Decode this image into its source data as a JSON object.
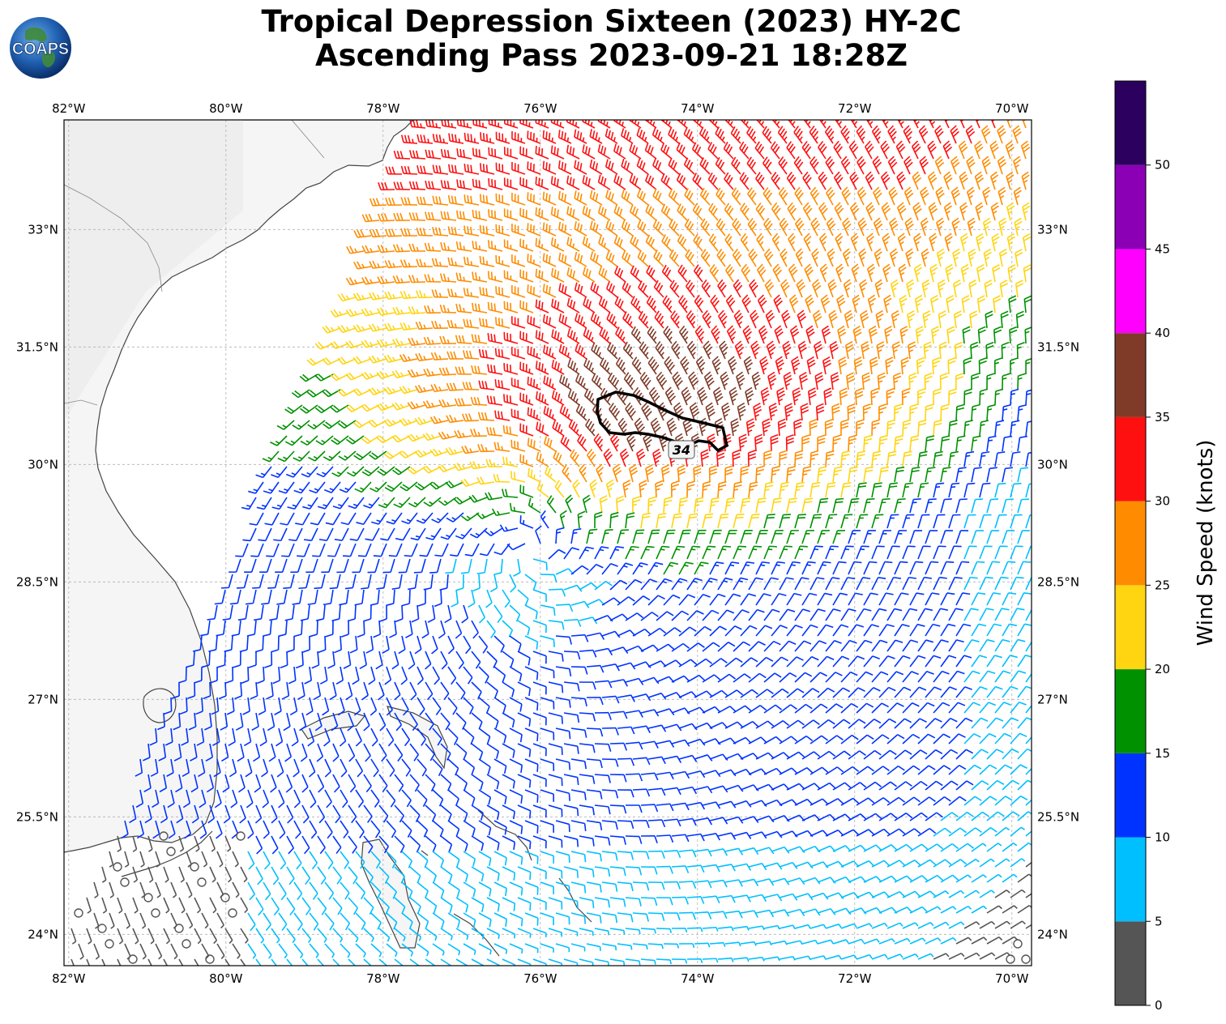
{
  "title": {
    "line1": "Tropical Depression Sixteen (2023) HY-2C",
    "line2": "Ascending Pass 2023-09-21 18:28Z"
  },
  "logo": {
    "text": "COAPS",
    "icon": "globe-icon"
  },
  "map": {
    "lon_labels": [
      "82°W",
      "80°W",
      "78°W",
      "76°W",
      "74°W",
      "72°W",
      "70°W"
    ],
    "lat_labels": [
      "33°N",
      "31.5°N",
      "30°N",
      "28.5°N",
      "27°N",
      "25.5°N",
      "24°N"
    ],
    "lon_ticks": [
      -82,
      -80,
      -78,
      -76,
      -74,
      -72,
      -70
    ],
    "lat_ticks": [
      33,
      31.5,
      30,
      28.5,
      27,
      25.5,
      24
    ],
    "extent": {
      "lon_min": -82.06,
      "lon_max": -69.75,
      "lat_min": 23.6,
      "lat_max": 34.4
    },
    "contour_label": "34",
    "storm_center": {
      "lon": -76.1,
      "lat": 28.9
    },
    "colors": {
      "land": "#f7f7f7",
      "coast": "#444444",
      "grid": "#b0b0b0",
      "contour": "#000000"
    }
  },
  "colorbar": {
    "title": "Wind Speed (knots)",
    "tick_labels": [
      "0",
      "5",
      "10",
      "15",
      "20",
      "25",
      "30",
      "35",
      "40",
      "45",
      "50"
    ],
    "bins": [
      {
        "min": 0,
        "max": 5,
        "color": "#555555"
      },
      {
        "min": 5,
        "max": 10,
        "color": "#00bfff"
      },
      {
        "min": 10,
        "max": 15,
        "color": "#0033ff"
      },
      {
        "min": 15,
        "max": 20,
        "color": "#009100"
      },
      {
        "min": 20,
        "max": 25,
        "color": "#ffd410"
      },
      {
        "min": 25,
        "max": 30,
        "color": "#ff8c00"
      },
      {
        "min": 30,
        "max": 35,
        "color": "#ff1010"
      },
      {
        "min": 35,
        "max": 40,
        "color": "#7f3b28"
      },
      {
        "min": 40,
        "max": 45,
        "color": "#ff00ff"
      },
      {
        "min": 45,
        "max": 50,
        "color": "#8b00b5"
      },
      {
        "min": 50,
        "max": 55,
        "color": "#2b005e"
      }
    ]
  }
}
